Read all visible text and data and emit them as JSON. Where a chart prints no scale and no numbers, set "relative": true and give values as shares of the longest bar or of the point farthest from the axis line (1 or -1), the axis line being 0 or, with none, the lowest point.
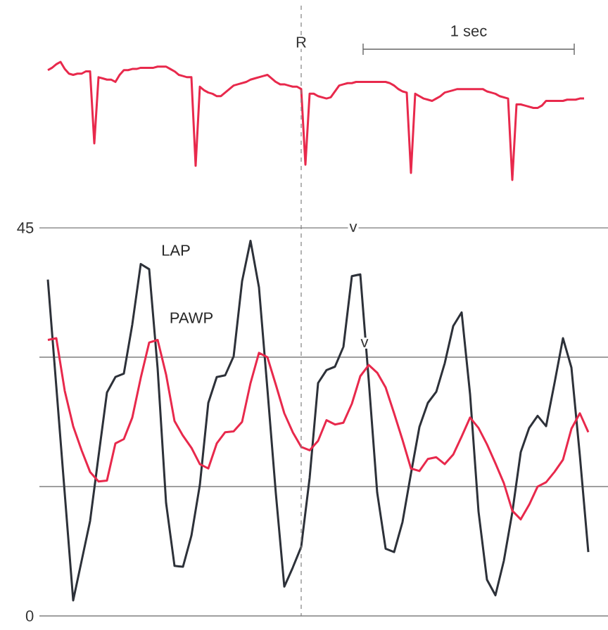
{
  "chart_data": [
    {
      "type": "line",
      "relative": true,
      "tick_labels": false,
      "categories": [
        null,
        null,
        null,
        null,
        null,
        null,
        null,
        null,
        null,
        null,
        null,
        null,
        null,
        null,
        null,
        null,
        null,
        null,
        null,
        null,
        null,
        null,
        null,
        null,
        null,
        null,
        null,
        null,
        null,
        null,
        null,
        null,
        null,
        null,
        null,
        null,
        null,
        null,
        null,
        null,
        null,
        null,
        null,
        null,
        null,
        null,
        null,
        null,
        null,
        null,
        null,
        null,
        null,
        null,
        null,
        null,
        null,
        null,
        null,
        null,
        null,
        null,
        null,
        null,
        null,
        null,
        null,
        null,
        null,
        null,
        null,
        null,
        null,
        null,
        null,
        null,
        null,
        null,
        null,
        null,
        null,
        null,
        null,
        null,
        null,
        null,
        null,
        null,
        null,
        null,
        null,
        null,
        null,
        null,
        null,
        null,
        null,
        null,
        null,
        null,
        null,
        null,
        null,
        null,
        null,
        null,
        null,
        null,
        null,
        null,
        null,
        null,
        null,
        null,
        null,
        null,
        null,
        null,
        null,
        null,
        null,
        null,
        null,
        null,
        null,
        null,
        null,
        null,
        null,
        null,
        null
      ],
      "series": [
        {
          "color": "#e8294c",
          "values": [
            0.93,
            0.95,
            0.98,
            1,
            0.94,
            0.9,
            0.89,
            0.9,
            0.9,
            0.92,
            0.92,
            0.31,
            0.87,
            0.86,
            0.85,
            0.85,
            0.83,
            0.89,
            0.93,
            0.93,
            0.94,
            0.94,
            0.95,
            0.95,
            0.95,
            0.95,
            0.96,
            0.96,
            0.96,
            0.94,
            0.92,
            0.89,
            0.88,
            0.87,
            0.87,
            0.12,
            0.79,
            0.76,
            0.74,
            0.73,
            0.71,
            0.71,
            0.74,
            0.77,
            0.8,
            0.81,
            0.82,
            0.83,
            0.85,
            0.86,
            0.87,
            0.88,
            0.89,
            0.86,
            0.83,
            0.81,
            0.81,
            0.8,
            0.79,
            0.79,
            0.77,
            0.13,
            0.73,
            0.73,
            0.71,
            0.7,
            0.69,
            0.7,
            0.75,
            0.8,
            0.81,
            0.82,
            0.82,
            0.83,
            0.83,
            0.83,
            0.83,
            0.83,
            0.83,
            0.83,
            0.83,
            0.82,
            0.8,
            0.77,
            0.75,
            0.74,
            0.06,
            0.73,
            0.71,
            0.69,
            0.68,
            0.67,
            0.69,
            0.71,
            0.74,
            0.75,
            0.76,
            0.77,
            0.77,
            0.77,
            0.77,
            0.77,
            0.77,
            0.77,
            0.75,
            0.74,
            0.73,
            0.71,
            0.7,
            0.69,
            0,
            0.64,
            0.64,
            0.63,
            0.62,
            0.61,
            0.61,
            0.63,
            0.67,
            0.67,
            0.67,
            0.67,
            0.67,
            0.68,
            0.68,
            0.68,
            0.69,
            0.69,
            null,
            null,
            null
          ]
        }
      ],
      "annotations": [
        "1 sec",
        "R"
      ]
    },
    {
      "type": "line",
      "tick_labels": "y",
      "grid": "y",
      "ylim": [
        0,
        45
      ],
      "yticks": [
        0,
        {
          "value": 15,
          "label": null
        },
        {
          "value": 30,
          "label": null
        },
        45
      ],
      "categories": [
        null,
        null,
        null,
        null,
        null,
        null,
        null,
        null,
        null,
        null,
        null,
        null,
        null,
        null,
        null,
        null,
        null,
        null,
        null,
        null,
        null,
        null,
        null,
        null,
        null,
        null,
        null,
        null,
        null,
        null,
        null,
        null,
        null,
        null,
        null,
        null,
        null,
        null,
        null,
        null,
        null,
        null,
        null,
        null,
        null,
        null,
        null,
        null,
        null,
        null,
        null,
        null,
        null,
        null,
        null,
        null,
        null,
        null,
        null,
        null,
        null,
        null,
        null,
        null,
        null,
        null
      ],
      "series": [
        {
          "name": "LAP",
          "color": "#2d3139",
          "values": [
            39,
            26.6,
            14.2,
            1.8,
            6.4,
            11,
            18.5,
            25.9,
            27.7,
            28.1,
            33.8,
            40.8,
            40.2,
            28.7,
            13.1,
            5.8,
            5.7,
            9.3,
            15.2,
            24.7,
            27.7,
            27.9,
            30.1,
            38.8,
            43.5,
            38.1,
            26.3,
            14.2,
            3.4,
            5.6,
            8,
            16,
            27,
            28.5,
            28.9,
            31.2,
            39.4,
            39.6,
            27.3,
            14.3,
            7.8,
            7.4,
            10.9,
            16.5,
            21.9,
            24.7,
            26,
            29.3,
            33.6,
            35.2,
            25.7,
            12.1,
            4.2,
            2.4,
            6.4,
            12,
            19,
            21.8,
            23.2,
            22,
            27,
            32.2,
            28.8,
            18.6,
            7.4,
            null
          ]
        },
        {
          "name": "PAWP",
          "color": "#e8294c",
          "values": [
            32,
            32.2,
            26.1,
            22,
            19.2,
            16.7,
            15.6,
            15.7,
            20,
            20.5,
            23,
            27.6,
            31.7,
            32,
            28,
            22.6,
            20.9,
            19.5,
            17.6,
            17.1,
            20,
            21.3,
            21.4,
            22.5,
            27,
            30.5,
            30,
            26.8,
            23.5,
            21.3,
            19.6,
            19.2,
            20.3,
            22.7,
            22.2,
            22.4,
            24.6,
            27.8,
            29.1,
            28.2,
            26.5,
            23.5,
            20.4,
            17.1,
            16.8,
            18.2,
            18.4,
            17.6,
            18.7,
            20.8,
            23,
            21.8,
            19.9,
            17.7,
            15.4,
            12.2,
            11.2,
            12.9,
            15,
            15.5,
            16.7,
            18.1,
            21.7,
            23.5,
            21.3,
            null
          ]
        }
      ],
      "annotations": [
        "v",
        "v"
      ]
    }
  ]
}
